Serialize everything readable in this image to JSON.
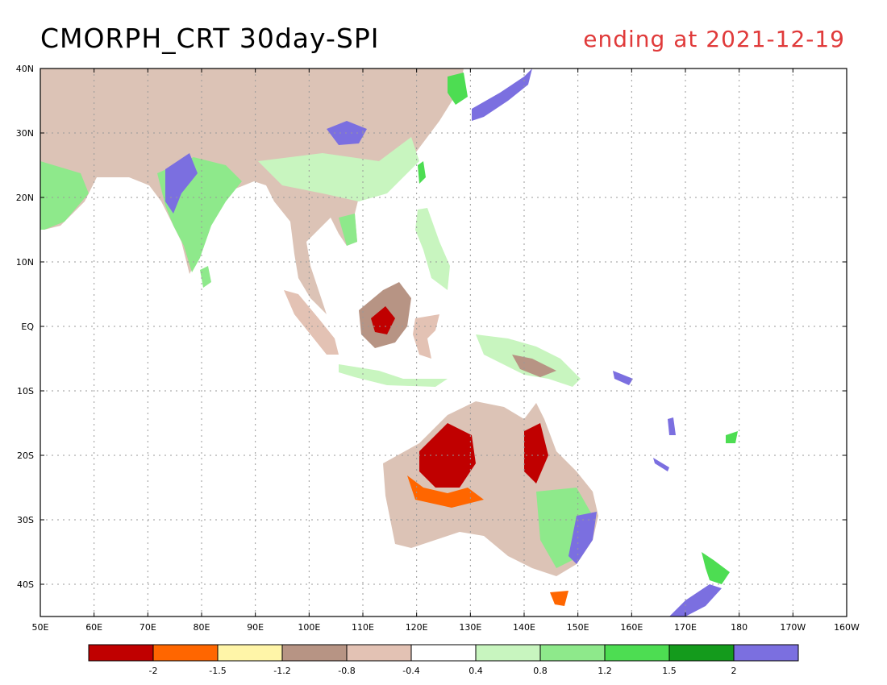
{
  "title": "CMORPH_CRT 30day-SPI",
  "subtitle": "ending at 2021-12-19",
  "map": {
    "x_labels": [
      "50E",
      "60E",
      "70E",
      "80E",
      "90E",
      "100E",
      "110E",
      "120E",
      "130E",
      "140E",
      "150E",
      "160E",
      "170E",
      "180",
      "170W",
      "160W"
    ],
    "y_labels": [
      "40N",
      "30N",
      "20N",
      "10N",
      "EQ",
      "10S",
      "20S",
      "30S",
      "40S"
    ],
    "lon_range": [
      50,
      200
    ],
    "lat_range": [
      -45,
      40
    ]
  },
  "legend": {
    "labels": [
      "-2",
      "-1.5",
      "-1.2",
      "-0.8",
      "-0.4",
      "0.4",
      "0.8",
      "1.2",
      "1.5",
      "2"
    ],
    "colors": [
      "#c00000",
      "#ff6600",
      "#fff5a8",
      "#b79484",
      "#e3c2b4",
      "#ffffff",
      "#c8f5bf",
      "#8ee98b",
      "#4ddd52",
      "#149b1c",
      "#7b6fe0"
    ]
  }
}
